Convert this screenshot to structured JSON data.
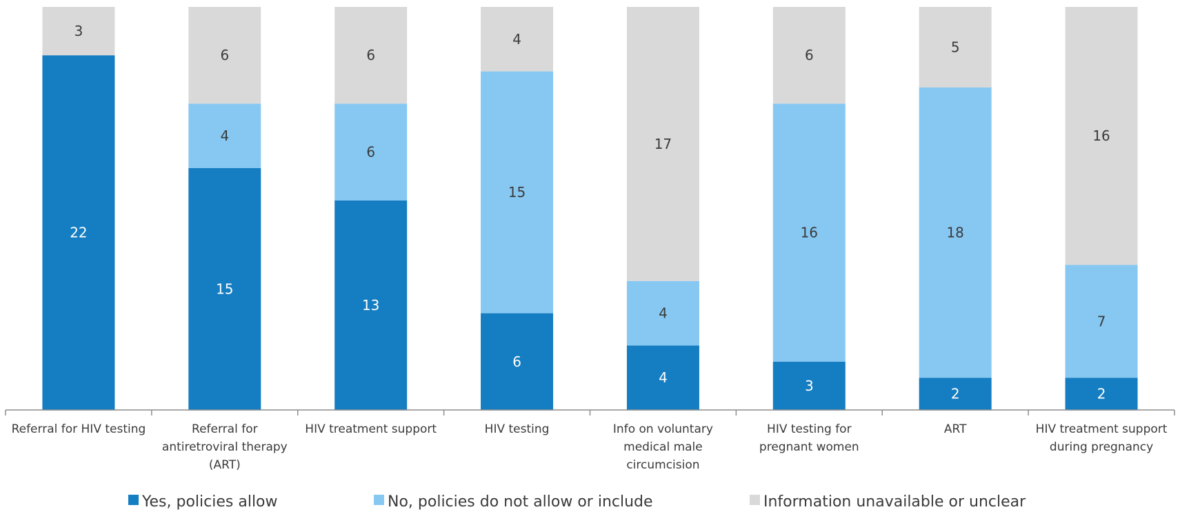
{
  "chart_data": {
    "type": "bar",
    "stacked": true,
    "categories": [
      [
        "Referral for HIV testing"
      ],
      [
        "Referral for",
        "antiretroviral therapy",
        "(ART)"
      ],
      [
        "HIV treatment support"
      ],
      [
        "HIV testing"
      ],
      [
        "Info on voluntary",
        "medical male",
        "circumcision"
      ],
      [
        "HIV testing for",
        "pregnant women"
      ],
      [
        "ART"
      ],
      [
        "HIV treatment support",
        "during pregnancy"
      ]
    ],
    "series": [
      {
        "name": "Yes, policies allow",
        "color": "#157dc1",
        "label_color": "#ffffff",
        "values": [
          22,
          15,
          13,
          6,
          4,
          3,
          2,
          2
        ]
      },
      {
        "name": "No, policies do not allow or include",
        "color": "#87c8f2",
        "label_color": "#3a3a3a",
        "values": [
          0,
          4,
          6,
          15,
          4,
          16,
          18,
          7
        ]
      },
      {
        "name": "Information unavailable or unclear",
        "color": "#d9d9d9",
        "label_color": "#3a3a3a",
        "values": [
          3,
          6,
          6,
          4,
          17,
          6,
          5,
          16
        ]
      }
    ],
    "ylim": [
      0,
      25
    ],
    "grid": false,
    "legend_position": "bottom",
    "title": "",
    "xlabel": "",
    "ylabel": ""
  }
}
